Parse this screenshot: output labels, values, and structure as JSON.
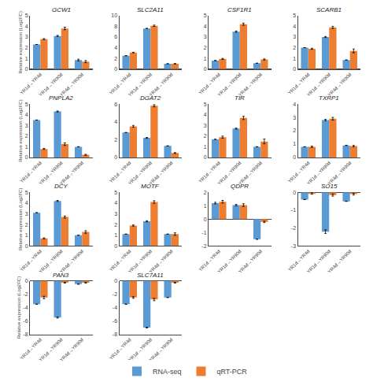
{
  "chart_data": [
    {
      "type": "bar",
      "title": "GCW1",
      "categories": [
        "YR1d→YR4d",
        "YR1d→YR90d",
        "YR4d→YR90d"
      ],
      "series": [
        {
          "name": "RNA-seq",
          "color": "#5b9bd5",
          "values": [
            2.3,
            3.1,
            0.85
          ],
          "errors": [
            0.0,
            0.05,
            0.08
          ]
        },
        {
          "name": "qRT-PCR",
          "color": "#ed7d31",
          "values": [
            2.8,
            3.8,
            0.7
          ],
          "errors": [
            0.05,
            0.12,
            0.1
          ]
        }
      ],
      "ylim": [
        0,
        5
      ],
      "yticks": [
        0,
        1,
        2,
        3,
        4,
        5
      ],
      "ylabel": "Relative expression (Log2FC)",
      "grid": false,
      "legend": "bottom"
    },
    {
      "type": "bar",
      "title": "SLC2A11",
      "categories": [
        "YR1d→YR4d",
        "YR1d→YR90d",
        "YR4d→YR90d"
      ],
      "series": [
        {
          "name": "RNA-seq",
          "color": "#5b9bd5",
          "values": [
            2.5,
            7.6,
            1.0
          ],
          "errors": [
            0.0,
            0.0,
            0.0
          ]
        },
        {
          "name": "qRT-PCR",
          "color": "#ed7d31",
          "values": [
            3.1,
            8.1,
            1.0
          ],
          "errors": [
            0.05,
            0.12,
            0.05
          ]
        }
      ],
      "ylim": [
        0,
        10
      ],
      "yticks": [
        0,
        2,
        4,
        6,
        8,
        10
      ],
      "grid": false
    },
    {
      "type": "bar",
      "title": "CSF1R1",
      "categories": [
        "YR1d→YR4d",
        "YR1d→YR90d",
        "YR4d→YR90d"
      ],
      "series": [
        {
          "name": "RNA-seq",
          "color": "#5b9bd5",
          "values": [
            0.8,
            3.5,
            0.55
          ],
          "errors": [
            0.0,
            0.06,
            0.0
          ]
        },
        {
          "name": "qRT-PCR",
          "color": "#ed7d31",
          "values": [
            0.95,
            4.2,
            0.9
          ],
          "errors": [
            0.05,
            0.1,
            0.05
          ]
        }
      ],
      "ylim": [
        0,
        5
      ],
      "yticks": [
        0,
        1,
        2,
        3,
        4,
        5
      ],
      "grid": false
    },
    {
      "type": "bar",
      "title": "SCARB1",
      "categories": [
        "YR1d→YR4d",
        "YR1d→YR90d",
        "YR4d→YR90d"
      ],
      "series": [
        {
          "name": "RNA-seq",
          "color": "#5b9bd5",
          "values": [
            2.0,
            3.0,
            0.85
          ],
          "errors": [
            0.0,
            0.05,
            0.0
          ]
        },
        {
          "name": "qRT-PCR",
          "color": "#ed7d31",
          "values": [
            1.9,
            3.9,
            1.7
          ],
          "errors": [
            0.05,
            0.1,
            0.18
          ]
        }
      ],
      "ylim": [
        0,
        5
      ],
      "yticks": [
        0,
        1,
        2,
        3,
        4,
        5
      ],
      "grid": false
    },
    {
      "type": "bar",
      "title": "PNPLA2",
      "categories": [
        "YR1d→YR4d",
        "YR1d→YR90d",
        "YR4d→YR90d"
      ],
      "series": [
        {
          "name": "RNA-seq",
          "color": "#5b9bd5",
          "values": [
            3.5,
            4.3,
            1.0
          ],
          "errors": [
            0.0,
            0.05,
            0.0
          ]
        },
        {
          "name": "qRT-PCR",
          "color": "#ed7d31",
          "values": [
            0.8,
            1.25,
            0.25
          ],
          "errors": [
            0.05,
            0.12,
            0.05
          ]
        }
      ],
      "ylim": [
        0,
        5
      ],
      "yticks": [
        0,
        1,
        2,
        3,
        4,
        5
      ],
      "ylabel": "Relative expression (Log2FC)",
      "grid": false
    },
    {
      "type": "bar",
      "title": "DGAT2",
      "categories": [
        "YR1d→YR4d",
        "YR1d→YR90d",
        "YR4d→YR90d"
      ],
      "series": [
        {
          "name": "RNA-seq",
          "color": "#5b9bd5",
          "values": [
            2.8,
            2.2,
            1.3
          ],
          "errors": [
            0.0,
            0.05,
            0.0
          ]
        },
        {
          "name": "qRT-PCR",
          "color": "#ed7d31",
          "values": [
            3.5,
            5.8,
            0.5
          ],
          "errors": [
            0.1,
            0.12,
            0.05
          ]
        }
      ],
      "ylim": [
        0,
        6
      ],
      "yticks": [
        0,
        2,
        4,
        6
      ],
      "grid": false
    },
    {
      "type": "bar",
      "title": "TIR",
      "categories": [
        "YR1d→YR4d",
        "YR1d→YR90d",
        "YR4d→YR90d"
      ],
      "series": [
        {
          "name": "RNA-seq",
          "color": "#5b9bd5",
          "values": [
            1.7,
            2.7,
            1.0
          ],
          "errors": [
            0.0,
            0.05,
            0.0
          ]
        },
        {
          "name": "qRT-PCR",
          "color": "#ed7d31",
          "values": [
            1.9,
            3.7,
            1.5
          ],
          "errors": [
            0.1,
            0.15,
            0.22
          ]
        }
      ],
      "ylim": [
        0,
        5
      ],
      "yticks": [
        0,
        1,
        2,
        3,
        4,
        5
      ],
      "grid": false
    },
    {
      "type": "bar",
      "title": "TXRP1",
      "categories": [
        "YR1d→YR4d",
        "YR1d→YR90d",
        "YR4d→YR90d"
      ],
      "series": [
        {
          "name": "RNA-seq",
          "color": "#5b9bd5",
          "values": [
            0.8,
            2.8,
            0.9
          ],
          "errors": [
            0.0,
            0.05,
            0.0
          ]
        },
        {
          "name": "qRT-PCR",
          "color": "#ed7d31",
          "values": [
            0.8,
            2.9,
            0.85
          ],
          "errors": [
            0.05,
            0.1,
            0.05
          ]
        }
      ],
      "ylim": [
        0,
        4
      ],
      "yticks": [
        0,
        1,
        2,
        3,
        4
      ],
      "grid": false
    },
    {
      "type": "bar",
      "title": "DCY",
      "categories": [
        "YR1d→YR4d",
        "YR1d→YR90d",
        "YR4d→YR90d"
      ],
      "series": [
        {
          "name": "RNA-seq",
          "color": "#5b9bd5",
          "values": [
            3.1,
            4.2,
            1.0
          ],
          "errors": [
            0.0,
            0.05,
            0.0
          ]
        },
        {
          "name": "qRT-PCR",
          "color": "#ed7d31",
          "values": [
            0.7,
            2.7,
            1.3
          ],
          "errors": [
            0.05,
            0.1,
            0.12
          ]
        }
      ],
      "ylim": [
        0,
        5
      ],
      "yticks": [
        0,
        1,
        2,
        3,
        4,
        5
      ],
      "ylabel": "Relative expression (Log2FC)",
      "grid": false
    },
    {
      "type": "bar",
      "title": "MOTF",
      "categories": [
        "YR1d→YR4d",
        "YR1d→YR90d",
        "YR4d→YR90d"
      ],
      "series": [
        {
          "name": "RNA-seq",
          "color": "#5b9bd5",
          "values": [
            1.1,
            2.3,
            1.1
          ],
          "errors": [
            0.0,
            0.05,
            0.0
          ]
        },
        {
          "name": "qRT-PCR",
          "color": "#ed7d31",
          "values": [
            1.9,
            4.1,
            1.1
          ],
          "errors": [
            0.05,
            0.12,
            0.12
          ]
        }
      ],
      "ylim": [
        0,
        5
      ],
      "yticks": [
        0,
        1,
        2,
        3,
        4,
        5
      ],
      "grid": false
    },
    {
      "type": "bar",
      "title": "QDPR",
      "categories": [
        "YR1d→YR4d",
        "YR1d→YR90d",
        "YR4d→YR90d"
      ],
      "series": [
        {
          "name": "RNA-seq",
          "color": "#5b9bd5",
          "values": [
            1.2,
            1.05,
            -1.5
          ],
          "errors": [
            0.06,
            0.05,
            0.0
          ]
        },
        {
          "name": "qRT-PCR",
          "color": "#ed7d31",
          "values": [
            1.3,
            1.05,
            -0.2
          ],
          "errors": [
            0.1,
            0.1,
            0.05
          ]
        }
      ],
      "ylim": [
        -2,
        2
      ],
      "yticks": [
        -2,
        -1,
        0,
        1,
        2
      ],
      "grid": false
    },
    {
      "type": "bar",
      "title": "SO15",
      "categories": [
        "YR1d→YR4d",
        "YR1d→YR90d",
        "YR4d→YR90d"
      ],
      "series": [
        {
          "name": "RNA-seq",
          "color": "#5b9bd5",
          "values": [
            -0.4,
            -2.2,
            -0.5
          ],
          "errors": [
            0.0,
            0.1,
            0.0
          ]
        },
        {
          "name": "qRT-PCR",
          "color": "#ed7d31",
          "values": [
            -0.05,
            -0.15,
            -0.1
          ],
          "errors": [
            0.05,
            0.06,
            0.05
          ]
        }
      ],
      "ylim": [
        -3,
        0
      ],
      "yticks": [
        -3,
        -2,
        -1,
        0
      ],
      "grid": false
    },
    {
      "type": "bar",
      "title": "PAN3",
      "categories": [
        "YR1d→YR4d",
        "YR1d→YR90d",
        "YR4d→YR90d"
      ],
      "series": [
        {
          "name": "RNA-seq",
          "color": "#5b9bd5",
          "values": [
            -3.5,
            -5.5,
            -0.5
          ],
          "errors": [
            0.0,
            0.08,
            0.0
          ]
        },
        {
          "name": "qRT-PCR",
          "color": "#ed7d31",
          "values": [
            -2.5,
            -0.3,
            -0.3
          ],
          "errors": [
            0.18,
            0.05,
            0.05
          ]
        }
      ],
      "ylim": [
        -8,
        0
      ],
      "yticks": [
        -8,
        -6,
        -4,
        -2,
        0
      ],
      "ylabel": "Relative expression (Log2FC)",
      "grid": false
    },
    {
      "type": "bar",
      "title": "SLC7A11",
      "categories": [
        "YR1d→YR4d",
        "YR1d→YR90d",
        "YR4d→YR90d"
      ],
      "series": [
        {
          "name": "RNA-seq",
          "color": "#5b9bd5",
          "values": [
            -3.5,
            -7.0,
            -2.5
          ],
          "errors": [
            0.0,
            0.06,
            0.0
          ]
        },
        {
          "name": "qRT-PCR",
          "color": "#ed7d31",
          "values": [
            -2.5,
            -2.8,
            -0.3
          ],
          "errors": [
            0.12,
            0.18,
            0.05
          ]
        }
      ],
      "ylim": [
        -8,
        0
      ],
      "yticks": [
        -8,
        -6,
        -4,
        -2,
        0
      ],
      "grid": false
    }
  ]
}
